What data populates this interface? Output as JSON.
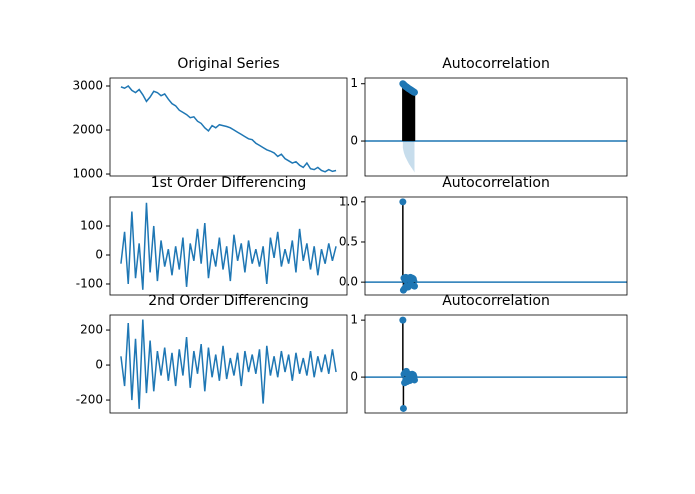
{
  "chart_data": [
    {
      "type": "line",
      "title": "Original Series",
      "color": "#1f77b4",
      "values": [
        2980,
        2950,
        3000,
        2900,
        2850,
        2920,
        2800,
        2650,
        2750,
        2880,
        2850,
        2780,
        2820,
        2700,
        2600,
        2550,
        2450,
        2400,
        2350,
        2280,
        2300,
        2200,
        2150,
        2050,
        1980,
        2100,
        2050,
        2120,
        2100,
        2080,
        2050,
        2000,
        1950,
        1900,
        1850,
        1800,
        1780,
        1700,
        1650,
        1600,
        1550,
        1520,
        1480,
        1400,
        1450,
        1350,
        1300,
        1250,
        1280,
        1200,
        1150,
        1250,
        1120,
        1100,
        1150,
        1080,
        1050,
        1100,
        1060,
        1080
      ],
      "xlim": [
        -3,
        62
      ],
      "ylim": [
        955,
        3182
      ],
      "yticks": [
        1000,
        2000,
        3000
      ]
    },
    {
      "type": "stem",
      "title": "Autocorrelation",
      "color": "#1f77b4",
      "x": [
        0,
        1,
        2,
        3,
        4,
        5,
        6,
        7,
        8,
        9,
        10,
        11,
        12,
        13,
        14,
        15,
        16,
        17,
        18,
        19,
        20
      ],
      "values": [
        1,
        0.99,
        0.98,
        0.97,
        0.96,
        0.95,
        0.945,
        0.94,
        0.93,
        0.92,
        0.915,
        0.91,
        0.9,
        0.895,
        0.89,
        0.88,
        0.875,
        0.87,
        0.86,
        0.855,
        0.85
      ],
      "confidence": [
        0.12,
        0.17,
        0.21,
        0.24,
        0.27,
        0.29,
        0.31,
        0.33,
        0.35,
        0.37,
        0.39,
        0.41,
        0.42,
        0.44,
        0.45,
        0.47,
        0.48,
        0.5,
        0.51,
        0.53,
        0.55
      ],
      "xlim": [
        -65,
        385
      ],
      "ylim": [
        -0.61,
        1.1
      ],
      "yticks": [
        0,
        1
      ]
    },
    {
      "type": "line",
      "title": "1st Order Differencing",
      "color": "#1f77b4",
      "values": [
        -30,
        80,
        -100,
        150,
        -80,
        40,
        -120,
        180,
        -60,
        100,
        -90,
        50,
        -40,
        20,
        -70,
        30,
        -50,
        60,
        -110,
        40,
        -20,
        90,
        -30,
        110,
        -80,
        20,
        -40,
        60,
        -50,
        30,
        -90,
        70,
        -20,
        40,
        -60,
        50,
        -30,
        20,
        -40,
        30,
        -100,
        60,
        -10,
        80,
        -40,
        20,
        -30,
        50,
        -60,
        90,
        -20,
        40,
        -50,
        30,
        -70,
        20,
        -30,
        40,
        -20,
        30
      ],
      "xlim": [
        -3,
        62
      ],
      "ylim": [
        -138,
        200
      ],
      "yticks": [
        -100,
        0,
        100
      ]
    },
    {
      "type": "stem",
      "title": "Autocorrelation",
      "color": "#1f77b4",
      "x": [
        0,
        1,
        2,
        3,
        4,
        5,
        6,
        7,
        8,
        9,
        10,
        11,
        12,
        13,
        14,
        15,
        16,
        17,
        18,
        19,
        20
      ],
      "values": [
        1,
        -0.1,
        0.05,
        -0.08,
        0.03,
        0.06,
        -0.05,
        0.02,
        0.04,
        -0.06,
        0.05,
        0.03,
        -0.04,
        0.06,
        0.02,
        -0.03,
        0.05,
        -0.02,
        0.04,
        0.01,
        -0.05
      ],
      "xlim": [
        -65,
        385
      ],
      "ylim": [
        -0.16,
        1.06
      ],
      "yticks": [
        {
          "value": 0,
          "label": "0.0"
        },
        0.5,
        {
          "value": 1,
          "label": "1.0"
        }
      ]
    },
    {
      "type": "line",
      "title": "2nd Order Differencing",
      "color": "#1f77b4",
      "values": [
        50,
        -120,
        240,
        -200,
        150,
        -250,
        260,
        -160,
        140,
        -150,
        80,
        -60,
        100,
        -90,
        70,
        -120,
        90,
        -60,
        160,
        -130,
        80,
        -50,
        120,
        -150,
        100,
        -70,
        60,
        -90,
        110,
        -80,
        40,
        -60,
        70,
        -120,
        80,
        -40,
        60,
        -50,
        90,
        -220,
        110,
        -60,
        50,
        -70,
        80,
        -40,
        60,
        -90,
        70,
        -50,
        40,
        -60,
        80,
        -70,
        50,
        -40,
        60,
        -50,
        90,
        -40
      ],
      "xlim": [
        -3,
        62
      ],
      "ylim": [
        -274,
        286
      ],
      "yticks": [
        -200,
        0,
        200
      ]
    },
    {
      "type": "stem",
      "title": "Autocorrelation",
      "color": "#1f77b4",
      "x": [
        0,
        1,
        2,
        3,
        4,
        5,
        6,
        7,
        8,
        9,
        10,
        11,
        12,
        13,
        14,
        15,
        16,
        17,
        18,
        19,
        20
      ],
      "values": [
        1,
        -0.55,
        0.05,
        -0.1,
        0.08,
        -0.05,
        0.1,
        -0.08,
        0.06,
        -0.04,
        0.05,
        0.03,
        -0.06,
        0.04,
        0.02,
        -0.03,
        0.05,
        -0.02,
        0.04,
        0.01,
        -0.05
      ],
      "xlim": [
        -65,
        385
      ],
      "ylim": [
        -0.63,
        1.09
      ],
      "yticks": [
        0,
        1
      ]
    }
  ]
}
